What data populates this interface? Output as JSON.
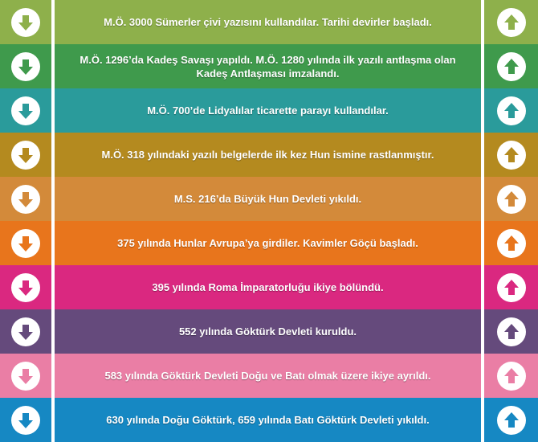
{
  "rows": [
    {
      "text": "M.Ö. 3000 Sümerler çivi yazısını kullandılar. Tarihi devirler başladı.",
      "color": "#8eb04b"
    },
    {
      "text": "M.Ö. 1296’da Kadeş Savaşı yapıldı.  M.Ö. 1280 yılında ilk yazılı antlaşma olan Kadeş Antlaşması imzalandı.",
      "color": "#3f9a4c"
    },
    {
      "text": "M.Ö. 700’de Lidyalılar ticarette parayı kullandılar.",
      "color": "#2a9b9b"
    },
    {
      "text": "M.Ö. 318 yılındaki yazılı belgelerde ilk kez Hun ismine rastlanmıştır.",
      "color": "#b48a1f"
    },
    {
      "text": "M.S. 216’da Büyük Hun Devleti yıkıldı.",
      "color": "#d38a3a"
    },
    {
      "text": "375 yılında Hunlar Avrupa’ya girdiler. Kavimler Göçü başladı.",
      "color": "#e8751c"
    },
    {
      "text": "395 yılında Roma İmparatorluğu ikiye bölündü.",
      "color": "#da2880"
    },
    {
      "text": "552 yılında Göktürk Devleti kuruldu.",
      "color": "#654a7c"
    },
    {
      "text": "583 yılında Göktürk Devleti Doğu ve Batı olmak üzere ikiye ayrıldı.",
      "color": "#ea7ea5"
    },
    {
      "text": "630 yılında Doğu Göktürk, 659 yılında Batı Göktürk Devleti yıkıldı.",
      "color": "#1688c3"
    }
  ],
  "icons": {
    "left": "arrow-down-circle-icon",
    "right": "arrow-up-circle-icon"
  }
}
